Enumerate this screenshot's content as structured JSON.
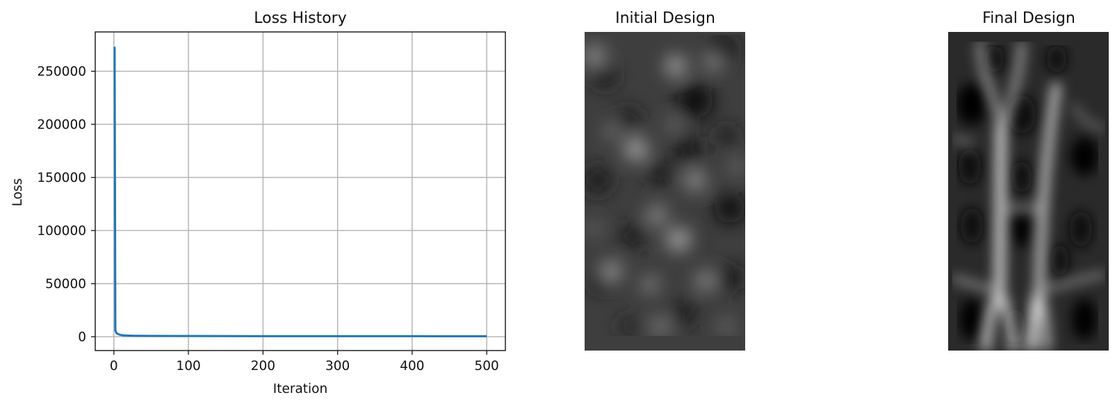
{
  "chart_data": [
    {
      "type": "line",
      "title": "Loss History",
      "xlabel": "Iteration",
      "ylabel": "Loss",
      "xlim": [
        -25,
        525
      ],
      "ylim": [
        -13000,
        287000
      ],
      "xticks": [
        0,
        100,
        200,
        300,
        400,
        500
      ],
      "yticks": [
        0,
        50000,
        100000,
        150000,
        200000,
        250000
      ],
      "grid": true,
      "series": [
        {
          "color": "#1f77b4",
          "x": [
            1,
            2,
            3,
            4,
            5,
            6,
            8,
            10,
            12,
            15,
            20,
            30,
            50,
            100,
            200,
            300,
            400,
            500
          ],
          "y": [
            273000,
            6000,
            4000,
            3200,
            2800,
            2400,
            1900,
            1600,
            1400,
            1200,
            1050,
            900,
            800,
            700,
            600,
            550,
            520,
            500
          ]
        }
      ]
    },
    {
      "type": "heatmap",
      "title": "Initial Design",
      "colormap": "gray"
    },
    {
      "type": "heatmap",
      "title": "Final Design",
      "colormap": "gray"
    }
  ]
}
